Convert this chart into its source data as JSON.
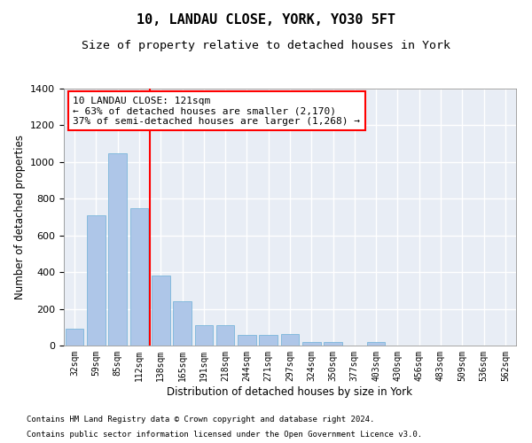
{
  "title": "10, LANDAU CLOSE, YORK, YO30 5FT",
  "subtitle": "Size of property relative to detached houses in York",
  "xlabel": "Distribution of detached houses by size in York",
  "ylabel": "Number of detached properties",
  "footnote1": "Contains HM Land Registry data © Crown copyright and database right 2024.",
  "footnote2": "Contains public sector information licensed under the Open Government Licence v3.0.",
  "annotation_line1": "10 LANDAU CLOSE: 121sqm",
  "annotation_line2": "← 63% of detached houses are smaller (2,170)",
  "annotation_line3": "37% of semi-detached houses are larger (1,268) →",
  "bar_labels": [
    "32sqm",
    "59sqm",
    "85sqm",
    "112sqm",
    "138sqm",
    "165sqm",
    "191sqm",
    "218sqm",
    "244sqm",
    "271sqm",
    "297sqm",
    "324sqm",
    "350sqm",
    "377sqm",
    "403sqm",
    "430sqm",
    "456sqm",
    "483sqm",
    "509sqm",
    "536sqm",
    "562sqm"
  ],
  "bar_values": [
    90,
    710,
    1050,
    750,
    380,
    240,
    110,
    110,
    60,
    60,
    65,
    20,
    18,
    0,
    18,
    0,
    0,
    0,
    0,
    0,
    0
  ],
  "bar_color": "#aec6e8",
  "bar_edge_color": "#6baed6",
  "bg_color": "#e8edf5",
  "grid_color": "#ffffff",
  "vline_color": "red",
  "annotation_box_color": "red",
  "ylim": [
    0,
    1400
  ],
  "title_fontsize": 11,
  "subtitle_fontsize": 9.5,
  "axis_label_fontsize": 8.5,
  "tick_fontsize": 7,
  "annotation_fontsize": 8,
  "footnote_fontsize": 6.5
}
